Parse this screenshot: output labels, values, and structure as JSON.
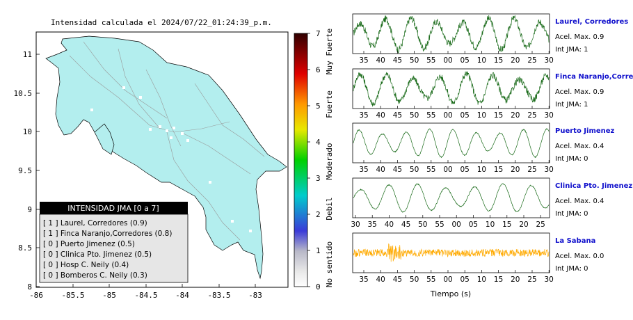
{
  "map": {
    "title": "Intensidad calculada el 2024/07/22_01:24:39_p.m.",
    "x_ticks": [
      "-86",
      "-85.5",
      "-85",
      "-84.5",
      "-84",
      "-83.5",
      "-83"
    ],
    "y_ticks": [
      "11",
      "10.5",
      "10",
      "9.5",
      "9",
      "8.5",
      "8"
    ],
    "land_color": "#b3eeee"
  },
  "legend": {
    "title": "INTENSIDAD JMA [0 a 7]",
    "items": [
      "[ 1 ]  Laurel, Corredores (0.9)",
      "[ 1 ]  Finca Naranjo,Corredores (0.8)",
      "[ 0 ]  Puerto Jimenez (0.5)",
      "[ 0 ]  Clinica Pto. Jimenez (0.5)",
      "[ 0 ]  Hosp C. Neily (0.4)",
      "[ 0 ]  Bomberos C. Neily (0.3)"
    ]
  },
  "colorbar": {
    "ticks": [
      "7",
      "6",
      "5",
      "4",
      "3",
      "2",
      "1",
      "0"
    ],
    "categories": [
      "Muy Fuerte",
      "Fuerte",
      "Moderado",
      "Debil",
      "No sentido"
    ]
  },
  "traces": {
    "xlabel": "Tiempo (s)",
    "stations": [
      {
        "name": "Laurel, Corredores",
        "acel": "Acel. Max. 0.9",
        "int": "Int JMA: 1",
        "color": "#1a6b1a",
        "ticks": [
          "35",
          "40",
          "45",
          "50",
          "55",
          "00",
          "05",
          "10",
          "15",
          "20",
          "25",
          "30"
        ]
      },
      {
        "name": "Finca Naranjo,Corredores",
        "acel": "Acel. Max. 0.9",
        "int": "Int JMA: 1",
        "color": "#1a6b1a",
        "ticks": [
          "35",
          "40",
          "45",
          "50",
          "55",
          "00",
          "05",
          "10",
          "15",
          "20",
          "25",
          "30"
        ]
      },
      {
        "name": "Puerto Jimenez",
        "acel": "Acel. Max. 0.4",
        "int": "Int JMA: 0",
        "color": "#1a6b1a",
        "ticks": [
          "35",
          "40",
          "45",
          "50",
          "55",
          "00",
          "05",
          "10",
          "15",
          "20",
          "25",
          "30"
        ]
      },
      {
        "name": "Clinica Pto. Jimenez",
        "acel": "Acel. Max. 0.4",
        "int": "Int JMA: 0",
        "color": "#1a6b1a",
        "ticks": [
          "30",
          "35",
          "40",
          "45",
          "50",
          "55",
          "00",
          "05",
          "10",
          "15",
          "20",
          "25"
        ]
      },
      {
        "name": "La Sabana",
        "acel": "Acel. Max. 0.0",
        "int": "Int JMA: 0",
        "color": "#ffaa00",
        "ticks": [
          "35",
          "40",
          "45",
          "50",
          "55",
          "00",
          "05",
          "10",
          "15",
          "20",
          "25",
          "30"
        ]
      }
    ]
  },
  "chart_data": [
    {
      "type": "scatter",
      "title": "Intensidad calculada el 2024/07/22_01:24:39_p.m.",
      "xlim": [
        -86,
        -82.55
      ],
      "ylim": [
        8,
        11.3
      ],
      "legend_position": "bottom-left"
    },
    {
      "type": "line",
      "xlabel": "Tiempo (s)",
      "series": [
        {
          "name": "Laurel, Corredores"
        },
        {
          "name": "Finca Naranjo,Corredores"
        },
        {
          "name": "Puerto Jimenez"
        },
        {
          "name": "Clinica Pto. Jimenez"
        },
        {
          "name": "La Sabana"
        }
      ]
    }
  ]
}
